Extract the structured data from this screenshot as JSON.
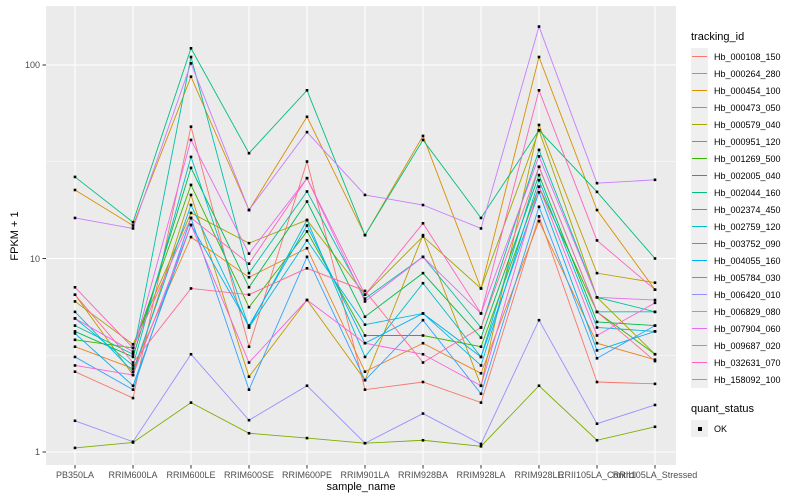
{
  "chart_data": {
    "type": "line",
    "title": "",
    "xlabel": "sample_name",
    "ylabel": "FPKM + 1",
    "y_scale": "log10",
    "ylim": [
      0.95,
      200
    ],
    "grid": true,
    "panel_bg": "#ebebeb",
    "grid_color": "#ffffff",
    "point_color": "#000000",
    "tick_label_color": "#4d4d4d",
    "y_ticks": [
      1,
      10,
      100
    ],
    "y_tick_labels": [
      "1",
      "10",
      "100"
    ],
    "y_minor": [
      3.1623,
      31.623
    ],
    "categories": [
      "PB350LA",
      "RRIM600LA",
      "RRIM600LE",
      "RRIM600SE",
      "RRIM600PE",
      "RRIM901LA",
      "RRIM928BA",
      "RRIM928LA",
      "RRIM928LE",
      "RRII105LA_Control",
      "RRII105LA_Stressed"
    ],
    "legend": {
      "color_title": "tracking_id",
      "shape_title": "quant_status",
      "shape_items": [
        {
          "label": "OK"
        }
      ]
    },
    "series": [
      {
        "name": "Hb_000108_150",
        "color": "#F8766D",
        "values": [
          2.6,
          1.9,
          48,
          3.5,
          31.7,
          2.1,
          2.3,
          1.8,
          16.5,
          2.3,
          2.25
        ]
      },
      {
        "name": "Hb_000264_280",
        "color": "#E88526",
        "values": [
          3.5,
          2.7,
          12.9,
          8.0,
          11.3,
          2.6,
          3.65,
          2.55,
          15.6,
          3.65,
          3.0
        ]
      },
      {
        "name": "Hb_000454_100",
        "color": "#D89000",
        "values": [
          22.6,
          14.8,
          87,
          17.8,
          54,
          13.2,
          43,
          7.0,
          110,
          17.8,
          6.9
        ]
      },
      {
        "name": "Hb_000473_050",
        "color": "#C09B00",
        "values": [
          6.5,
          2.5,
          21.3,
          2.45,
          6.1,
          2.35,
          13.2,
          2.2,
          49,
          8.4,
          7.5
        ]
      },
      {
        "name": "Hb_000579_040",
        "color": "#A3A500",
        "values": [
          6.0,
          3.6,
          17.2,
          12.0,
          15.8,
          6.5,
          13.0,
          7.0,
          46,
          6.3,
          3.2
        ]
      },
      {
        "name": "Hb_000951_120",
        "color": "#7CAE00",
        "values": [
          1.05,
          1.12,
          1.8,
          1.25,
          1.18,
          1.11,
          1.15,
          1.07,
          2.2,
          1.15,
          1.35
        ]
      },
      {
        "name": "Hb_001269_500",
        "color": "#39B600",
        "values": [
          3.8,
          3.45,
          24,
          5.6,
          13.8,
          4.0,
          4.0,
          3.5,
          23.5,
          5.3,
          3.2
        ]
      },
      {
        "name": "Hb_002005_040",
        "color": "#00BB4E",
        "values": [
          4.2,
          3.1,
          29.4,
          7.1,
          19.7,
          5.0,
          8.4,
          3.9,
          27,
          4.7,
          4.5
        ]
      },
      {
        "name": "Hb_002044_160",
        "color": "#00BF7D",
        "values": [
          26.4,
          15.4,
          122,
          35,
          74,
          13.2,
          41,
          16.2,
          46,
          22.1,
          10.0
        ]
      },
      {
        "name": "Hb_002374_450",
        "color": "#00C1A3",
        "values": [
          4.5,
          3.2,
          110,
          8.4,
          22.2,
          6.2,
          10.2,
          4.4,
          36.4,
          6.3,
          5.3
        ]
      },
      {
        "name": "Hb_002759_120",
        "color": "#00BFC4",
        "values": [
          4.9,
          2.8,
          33.5,
          4.4,
          15.8,
          3.1,
          7.45,
          3.1,
          29.8,
          5.3,
          5.3
        ]
      },
      {
        "name": "Hb_003752_090",
        "color": "#00BAE0",
        "values": [
          5.3,
          2.6,
          18.9,
          4.4,
          12.4,
          4.55,
          5.2,
          2.8,
          25.4,
          4.4,
          4.2
        ]
      },
      {
        "name": "Hb_004055_160",
        "color": "#00B0F6",
        "values": [
          4.1,
          2.2,
          14.9,
          4.5,
          14.8,
          3.65,
          5.2,
          3.1,
          22,
          3.35,
          4.2
        ]
      },
      {
        "name": "Hb_005784_030",
        "color": "#35A2FF",
        "values": [
          3.1,
          2.1,
          16.2,
          2.1,
          10.2,
          2.35,
          4.8,
          2.0,
          18.5,
          3.05,
          4.5
        ]
      },
      {
        "name": "Hb_006420_010",
        "color": "#9590FF",
        "values": [
          1.45,
          1.13,
          3.2,
          1.46,
          2.2,
          1.11,
          1.58,
          1.1,
          4.8,
          1.4,
          1.75
        ]
      },
      {
        "name": "Hb_006829_080",
        "color": "#C77CFF",
        "values": [
          16.2,
          14.3,
          102,
          17.8,
          45,
          21.3,
          18.9,
          14.3,
          158,
          24.5,
          25.5
        ]
      },
      {
        "name": "Hb_007904_060",
        "color": "#E76BF3",
        "values": [
          4.9,
          3.3,
          41,
          10.6,
          26,
          6.0,
          10.2,
          5.2,
          33.7,
          6.3,
          6.1
        ]
      },
      {
        "name": "Hb_009687_020",
        "color": "#FA62DB",
        "values": [
          2.8,
          2.5,
          14.9,
          2.9,
          6.1,
          3.65,
          3.2,
          2.2,
          23.5,
          4.0,
          5.9
        ]
      },
      {
        "name": "Hb_032631_070",
        "color": "#FF62BC",
        "values": [
          7.1,
          3.45,
          16.2,
          9.4,
          26,
          6.5,
          15.2,
          5.2,
          74,
          12.4,
          6.9
        ]
      },
      {
        "name": "Hb_158092_100",
        "color": "#FF6A98",
        "values": [
          6.5,
          2.9,
          7.0,
          6.5,
          8.9,
          6.8,
          2.9,
          4.4,
          29.8,
          5.3,
          2.95
        ]
      }
    ]
  }
}
